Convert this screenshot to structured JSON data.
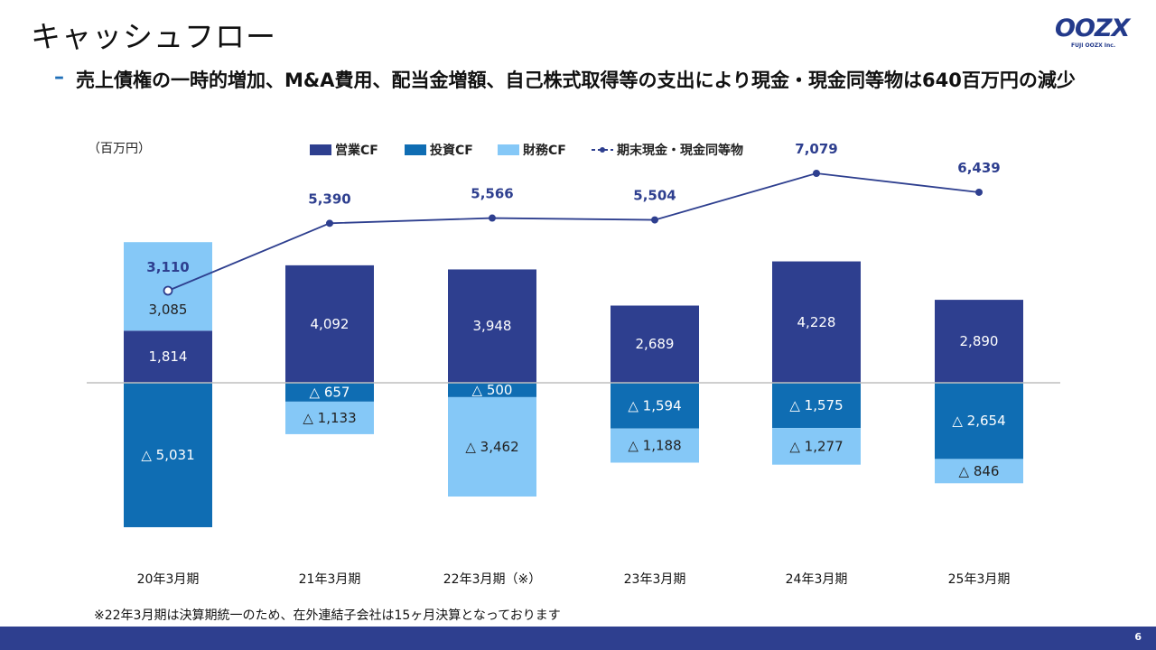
{
  "header": {
    "title": "キャッシュフロー",
    "logo_text": "OOZX",
    "logo_sub": "FUJI OOZX Inc."
  },
  "subtitle": {
    "dash": "–",
    "text": "売上債権の一時的増加、M&A費用、配当金増額、自己株式取得等の支出により現金・現金同等物は640百万円の減少"
  },
  "chart_data": {
    "type": "bar",
    "unit": "（百万円）",
    "categories": [
      "20年3月期",
      "21年3月期",
      "22年3月期（※）",
      "23年3月期",
      "24年3月期",
      "25年3月期"
    ],
    "series": [
      {
        "name": "営業CF",
        "color": "#2e3f8f",
        "values": [
          1814,
          4092,
          3948,
          2689,
          4228,
          2890
        ],
        "labels": [
          "1,814",
          "4,092",
          "3,948",
          "2,689",
          "4,228",
          "2,890"
        ]
      },
      {
        "name": "投資CF",
        "color": "#0f6db3",
        "values": [
          -5031,
          -657,
          -500,
          -1594,
          -1575,
          -2654
        ],
        "labels": [
          "△ 5,031",
          "△ 657",
          "△ 500",
          "△ 1,594",
          "△ 1,575",
          "△ 2,654"
        ]
      },
      {
        "name": "財務CF",
        "color": "#85c8f7",
        "values": [
          3085,
          -1133,
          -3462,
          -1188,
          -1277,
          -846
        ],
        "labels": [
          "3,085",
          "△ 1,133",
          "△ 3,462",
          "△ 1,188",
          "△ 1,277",
          "△ 846"
        ]
      }
    ],
    "line": {
      "name": "期末現金・現金同等物",
      "color": "#2e3f8f",
      "values": [
        3110,
        5390,
        5566,
        5504,
        7079,
        6439
      ],
      "labels": [
        "3,110",
        "5,390",
        "5,566",
        "5,504",
        "7,079",
        "6,439"
      ]
    },
    "legend_position": "top"
  },
  "footnote": "※22年3月期は決算期統一のため、在外連結子会社は15ヶ月決算となっております",
  "page_number": "6"
}
